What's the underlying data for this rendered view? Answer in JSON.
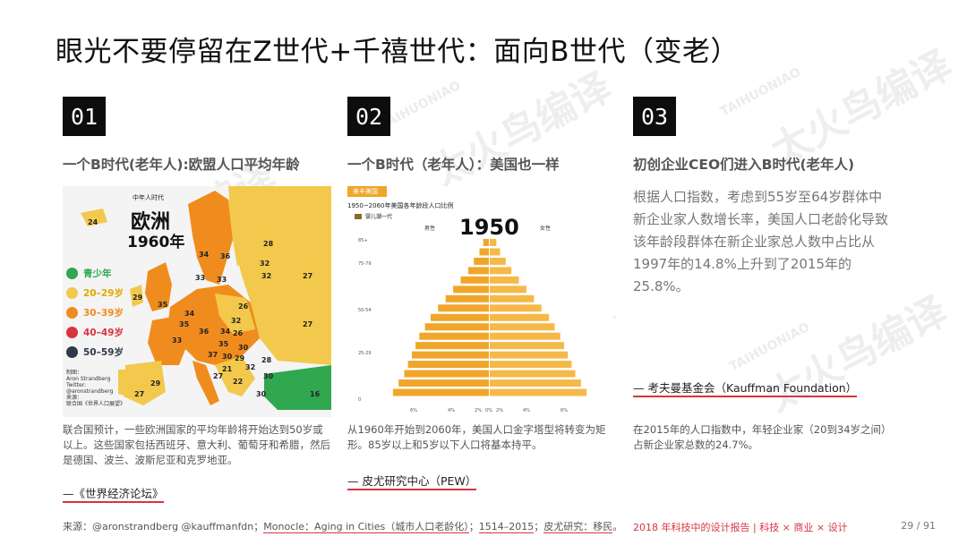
{
  "title": "眼光不要停留在Z世代+千禧世代：面向B世代（变老）",
  "columns": [
    {
      "number": "01",
      "heading": "一个B时代(老年人):欧盟人口平均年龄",
      "description": "联合国预计，一些欧洲国家的平均年龄将开始达到50岁或以上。这些国家包括西班牙、意大利、葡萄牙和希腊，然后是德国、波兰、波斯尼亚和克罗地亚。",
      "source": "—《世界经济论坛》"
    },
    {
      "number": "02",
      "heading": "一个B时代（老年人）：美国也一样",
      "description": "从1960年开始到2060年，美国人口金字塔型将转变为矩形。85岁以上和5岁以下人口将基本持平。",
      "source": "— 皮尤研究中心（PEW）"
    },
    {
      "number": "03",
      "heading": "初创企业CEO们进入B时代(老年人)",
      "body": "根据人口指数，考虑到55岁至64岁群体中新企业家人数增长率，美国人口老龄化导致该年龄段群体在新企业家总人数中占比从1997年的14.8%上升到了2015年的25.8%。",
      "source": "— 考夫曼基金会（Kauffman Foundation）",
      "description": "在2015年的人口指数中，年轻企业家（20到34岁之间）占新企业家总数的24.7%。"
    }
  ],
  "map": {
    "small_label": "中年人时代",
    "region": "欧洲",
    "year": "1960年",
    "legend": [
      {
        "label": "青少年",
        "color": "#2fa84f"
      },
      {
        "label": "20–29岁",
        "color": "#f2c94c"
      },
      {
        "label": "30–39岁",
        "color": "#f08c1e"
      },
      {
        "label": "40–49岁",
        "color": "#d9333f"
      },
      {
        "label": "50–59岁",
        "color": "#2d3a4a"
      }
    ],
    "numbers": [
      "24",
      "34",
      "36",
      "28",
      "32",
      "32",
      "27",
      "33",
      "33",
      "29",
      "35",
      "34",
      "35",
      "26",
      "32",
      "33",
      "36",
      "34",
      "35",
      "26",
      "30",
      "37",
      "30",
      "29",
      "21",
      "27",
      "32",
      "28",
      "22",
      "30",
      "29",
      "27",
      "30",
      "16",
      "27"
    ],
    "credit": "制图：\nAron Strandberg\nTwitter:\n@aronstrandberg\n来源：\n联合国《世界人口展望》"
  },
  "pyramid": {
    "tag": "美丰美国",
    "subtitle": "1950~2060年美国各年龄段人口比例",
    "legend_label": "婴儿潮一代",
    "year": "1950",
    "male_label": "男性",
    "female_label": "女性",
    "age_ticks": [
      "85+",
      "75-79",
      "50-54",
      "25-29",
      "0"
    ],
    "pct_ticks": [
      "6%",
      "4%",
      "2%",
      "0%",
      "2%",
      "4%",
      "6%"
    ],
    "male_bars": [
      0.3,
      0.5,
      0.8,
      1.1,
      1.5,
      1.9,
      2.3,
      2.7,
      3.1,
      3.4,
      3.7,
      3.9,
      4.1,
      4.3,
      4.5,
      4.8,
      5.1
    ],
    "female_bars": [
      0.35,
      0.55,
      0.85,
      1.15,
      1.55,
      1.95,
      2.35,
      2.75,
      3.15,
      3.45,
      3.75,
      3.95,
      4.15,
      4.35,
      4.55,
      4.85,
      5.15
    ]
  },
  "footer": {
    "source_prefix": "来源：@aronstrandberg @kauffmanfdn；",
    "source_link1": "Monocle：Aging in Cities（城市人口老龄化）",
    "source_sep1": "；",
    "source_link2": "1514–2015",
    "source_sep2": "；",
    "source_link3": "皮尤研究：移民",
    "source_end": "。",
    "report": "2018 年科技中的设计报告 | 科技 × 商业 × 设计",
    "page": "29 / 91"
  },
  "watermark": {
    "main": "太火鸟编译",
    "brand": "TAIHUONIAO"
  }
}
